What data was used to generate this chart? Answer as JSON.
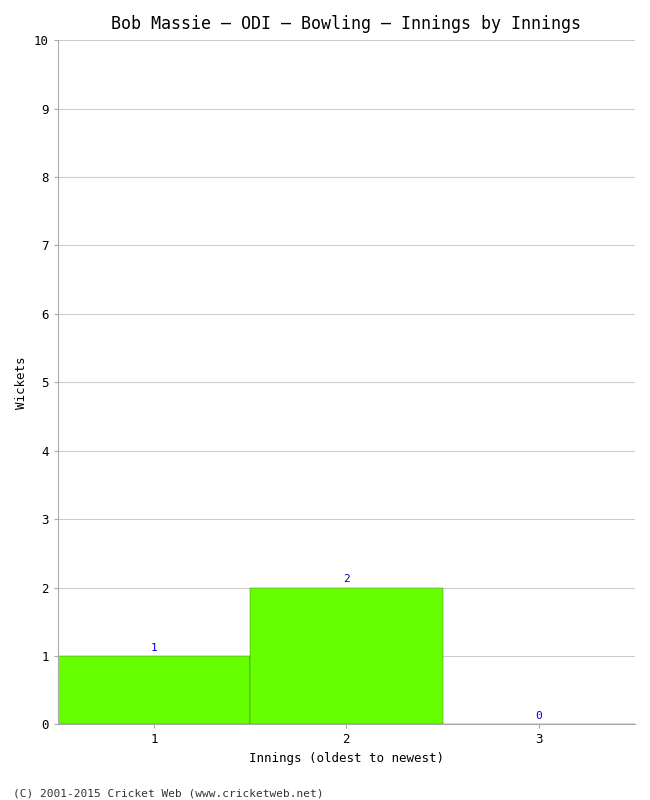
{
  "title": "Bob Massie – ODI – Bowling – Innings by Innings",
  "xlabel": "Innings (oldest to newest)",
  "ylabel": "Wickets",
  "categories": [
    "1",
    "2",
    "3"
  ],
  "values": [
    1,
    2,
    0
  ],
  "bar_color": "#66ff00",
  "bar_edge_color": "#66ff00",
  "ylim": [
    0,
    10
  ],
  "yticks": [
    0,
    1,
    2,
    3,
    4,
    5,
    6,
    7,
    8,
    9,
    10
  ],
  "title_fontsize": 12,
  "axis_label_fontsize": 9,
  "tick_fontsize": 9,
  "annotation_color": "#0000cc",
  "annotation_fontsize": 8,
  "background_color": "#ffffff",
  "grid_color": "#cccccc",
  "footer": "(C) 2001-2015 Cricket Web (www.cricketweb.net)",
  "footer_fontsize": 8
}
